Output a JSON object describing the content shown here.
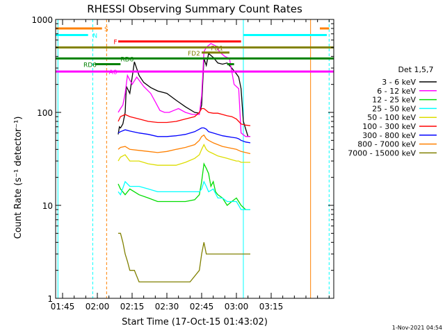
{
  "chart_data": {
    "type": "line",
    "title": "RHESSI Observing Summary Count Rates",
    "xlabel": "Start Time (17-Oct-15 01:43:02)",
    "ylabel": "Count Rate (s⁻¹ detector⁻¹)",
    "yscale": "log",
    "ylim": [
      1,
      1000
    ],
    "xlim_minutes": [
      102,
      222
    ],
    "x_ticks": [
      "01:45",
      "02:00",
      "02:15",
      "02:30",
      "02:45",
      "03:00",
      "03:15"
    ],
    "x_tick_minutes": [
      105,
      120,
      135,
      150,
      165,
      180,
      195
    ],
    "y_ticks": [
      "1",
      "10",
      "100",
      "1000"
    ],
    "y_tick_values": [
      1,
      10,
      100,
      1000
    ],
    "legend_title": "Det 1,5,7",
    "legend_placement": "right",
    "timestamp": "1-Nov-2021 04:54",
    "series": [
      {
        "name": "3 - 6 keV",
        "color": "#000000",
        "points": [
          [
            129,
            58
          ],
          [
            129.5,
            70
          ],
          [
            130,
            68
          ],
          [
            131,
            75
          ],
          [
            132,
            100
          ],
          [
            132.5,
            190
          ],
          [
            134,
            160
          ],
          [
            136,
            350
          ],
          [
            138,
            250
          ],
          [
            140,
            210
          ],
          [
            143,
            185
          ],
          [
            146,
            170
          ],
          [
            150,
            160
          ],
          [
            154,
            135
          ],
          [
            158,
            115
          ],
          [
            162,
            100
          ],
          [
            164,
            98
          ],
          [
            165,
            120
          ],
          [
            166,
            380
          ],
          [
            167,
            320
          ],
          [
            168,
            430
          ],
          [
            170,
            390
          ],
          [
            172,
            340
          ],
          [
            174,
            330
          ],
          [
            176,
            340
          ],
          [
            178,
            300
          ],
          [
            180,
            260
          ],
          [
            181,
            240
          ],
          [
            182,
            180
          ],
          [
            183,
            80
          ],
          [
            185,
            55
          ],
          [
            186,
            55
          ]
        ]
      },
      {
        "name": "6 - 12 keV",
        "color": "#ff00ff",
        "points": [
          [
            129,
            100
          ],
          [
            130,
            110
          ],
          [
            131,
            120
          ],
          [
            132,
            160
          ],
          [
            133,
            250
          ],
          [
            135,
            200
          ],
          [
            137,
            240
          ],
          [
            140,
            190
          ],
          [
            143,
            160
          ],
          [
            145,
            130
          ],
          [
            147,
            105
          ],
          [
            149,
            100
          ],
          [
            151,
            100
          ],
          [
            153,
            105
          ],
          [
            155,
            110
          ],
          [
            158,
            100
          ],
          [
            161,
            95
          ],
          [
            164,
            95
          ],
          [
            165,
            150
          ],
          [
            166,
            450
          ],
          [
            167,
            500
          ],
          [
            169,
            550
          ],
          [
            171,
            520
          ],
          [
            173,
            440
          ],
          [
            175,
            400
          ],
          [
            177,
            380
          ],
          [
            179,
            200
          ],
          [
            181,
            180
          ],
          [
            182,
            60
          ],
          [
            184,
            55
          ],
          [
            186,
            55
          ]
        ]
      },
      {
        "name": "12 - 25 keV",
        "color": "#00dd00",
        "points": [
          [
            129,
            17
          ],
          [
            130,
            15
          ],
          [
            132,
            13
          ],
          [
            134,
            15
          ],
          [
            138,
            13
          ],
          [
            142,
            12
          ],
          [
            146,
            11
          ],
          [
            150,
            11
          ],
          [
            154,
            11
          ],
          [
            158,
            11
          ],
          [
            162,
            11.5
          ],
          [
            164,
            13
          ],
          [
            165,
            18
          ],
          [
            166,
            28
          ],
          [
            167,
            25
          ],
          [
            168,
            22
          ],
          [
            169,
            16
          ],
          [
            170,
            18
          ],
          [
            171,
            14
          ],
          [
            172,
            13
          ],
          [
            174,
            12
          ],
          [
            176,
            10
          ],
          [
            178,
            11
          ],
          [
            180,
            12
          ],
          [
            181,
            11
          ],
          [
            182,
            10
          ],
          [
            184,
            9
          ],
          [
            186,
            9
          ]
        ]
      },
      {
        "name": "25 - 50 keV",
        "color": "#00ffff",
        "points": [
          [
            129,
            14
          ],
          [
            130,
            13
          ],
          [
            132,
            18
          ],
          [
            134,
            16
          ],
          [
            138,
            16
          ],
          [
            142,
            15
          ],
          [
            146,
            14
          ],
          [
            150,
            14
          ],
          [
            154,
            14
          ],
          [
            158,
            14
          ],
          [
            162,
            14
          ],
          [
            164,
            14
          ],
          [
            165,
            15
          ],
          [
            166,
            18
          ],
          [
            167,
            16
          ],
          [
            168,
            14
          ],
          [
            170,
            15
          ],
          [
            172,
            12
          ],
          [
            174,
            12
          ],
          [
            176,
            11
          ],
          [
            178,
            11
          ],
          [
            180,
            11
          ],
          [
            181,
            10
          ],
          [
            182,
            9
          ],
          [
            184,
            9
          ],
          [
            186,
            9
          ]
        ]
      },
      {
        "name": "50 - 100 keV",
        "color": "#dddd00",
        "points": [
          [
            129,
            30
          ],
          [
            130,
            33
          ],
          [
            132,
            35
          ],
          [
            134,
            30
          ],
          [
            138,
            30
          ],
          [
            142,
            28
          ],
          [
            146,
            27
          ],
          [
            150,
            27
          ],
          [
            154,
            27
          ],
          [
            158,
            29
          ],
          [
            162,
            32
          ],
          [
            164,
            35
          ],
          [
            165,
            40
          ],
          [
            166,
            45
          ],
          [
            167,
            40
          ],
          [
            168,
            38
          ],
          [
            170,
            36
          ],
          [
            172,
            34
          ],
          [
            174,
            33
          ],
          [
            176,
            32
          ],
          [
            178,
            31
          ],
          [
            180,
            30
          ],
          [
            181,
            30
          ],
          [
            182,
            29
          ],
          [
            184,
            29
          ],
          [
            186,
            29
          ]
        ]
      },
      {
        "name": "100 - 300 keV",
        "color": "#ff0000",
        "points": [
          [
            129,
            80
          ],
          [
            130,
            90
          ],
          [
            132,
            95
          ],
          [
            134,
            90
          ],
          [
            138,
            85
          ],
          [
            142,
            80
          ],
          [
            146,
            78
          ],
          [
            150,
            78
          ],
          [
            154,
            80
          ],
          [
            158,
            85
          ],
          [
            162,
            90
          ],
          [
            164,
            100
          ],
          [
            165,
            110
          ],
          [
            166,
            110
          ],
          [
            167,
            105
          ],
          [
            168,
            100
          ],
          [
            170,
            98
          ],
          [
            172,
            98
          ],
          [
            174,
            95
          ],
          [
            176,
            92
          ],
          [
            178,
            90
          ],
          [
            180,
            85
          ],
          [
            181,
            80
          ],
          [
            182,
            75
          ],
          [
            184,
            73
          ],
          [
            186,
            72
          ]
        ]
      },
      {
        "name": "300 - 800 keV",
        "color": "#0000ff",
        "points": [
          [
            129,
            60
          ],
          [
            130,
            62
          ],
          [
            132,
            65
          ],
          [
            134,
            63
          ],
          [
            138,
            60
          ],
          [
            142,
            58
          ],
          [
            146,
            55
          ],
          [
            150,
            55
          ],
          [
            154,
            56
          ],
          [
            158,
            58
          ],
          [
            162,
            62
          ],
          [
            164,
            66
          ],
          [
            165,
            68
          ],
          [
            166,
            68
          ],
          [
            167,
            66
          ],
          [
            168,
            62
          ],
          [
            170,
            60
          ],
          [
            172,
            58
          ],
          [
            174,
            56
          ],
          [
            176,
            55
          ],
          [
            178,
            54
          ],
          [
            180,
            53
          ],
          [
            181,
            52
          ],
          [
            182,
            50
          ],
          [
            184,
            48
          ],
          [
            186,
            47
          ]
        ]
      },
      {
        "name": "800 - 7000 keV",
        "color": "#ff8000",
        "points": [
          [
            129,
            40
          ],
          [
            130,
            42
          ],
          [
            132,
            43
          ],
          [
            134,
            40
          ],
          [
            138,
            39
          ],
          [
            142,
            38
          ],
          [
            146,
            37
          ],
          [
            150,
            38
          ],
          [
            154,
            40
          ],
          [
            158,
            42
          ],
          [
            162,
            45
          ],
          [
            164,
            50
          ],
          [
            165,
            55
          ],
          [
            166,
            57
          ],
          [
            167,
            52
          ],
          [
            168,
            50
          ],
          [
            170,
            47
          ],
          [
            172,
            45
          ],
          [
            174,
            43
          ],
          [
            176,
            42
          ],
          [
            178,
            41
          ],
          [
            180,
            40
          ],
          [
            181,
            39
          ],
          [
            182,
            38
          ],
          [
            184,
            37
          ],
          [
            186,
            36
          ]
        ]
      },
      {
        "name": "7000 - 15000 keV",
        "color": "#808000",
        "points": [
          [
            129,
            5
          ],
          [
            130,
            5
          ],
          [
            131,
            4
          ],
          [
            132,
            3
          ],
          [
            133,
            2.5
          ],
          [
            134,
            2
          ],
          [
            136,
            2
          ],
          [
            138,
            1.5
          ],
          [
            140,
            1.5
          ],
          [
            144,
            1.5
          ],
          [
            148,
            1.5
          ],
          [
            152,
            1.5
          ],
          [
            156,
            1.5
          ],
          [
            160,
            1.5
          ],
          [
            164,
            2
          ],
          [
            165,
            3
          ],
          [
            166,
            4
          ],
          [
            167,
            3
          ],
          [
            168,
            3
          ],
          [
            170,
            3
          ],
          [
            172,
            3
          ],
          [
            174,
            3
          ],
          [
            176,
            3
          ],
          [
            178,
            3
          ],
          [
            180,
            3
          ],
          [
            181,
            3
          ],
          [
            182,
            3
          ],
          [
            184,
            3
          ],
          [
            186,
            3
          ]
        ]
      }
    ],
    "state_bars": [
      {
        "label": "S",
        "color": "#ff8000",
        "y": 800,
        "segments": [
          [
            102,
            122
          ],
          [
            216,
            220
          ]
        ],
        "label_at": 123
      },
      {
        "label": "N",
        "color": "#00ffff",
        "y": 680,
        "segments": [
          [
            102,
            116
          ],
          [
            183,
            219
          ]
        ],
        "label_at": 118
      },
      {
        "label": "F",
        "color": "#ff0000",
        "y": 580,
        "segments": [
          [
            129,
            182
          ]
        ],
        "label_at": 127
      },
      {
        "label": "FD1",
        "color": "#808000",
        "y": 500,
        "segments": [
          [
            102,
            222
          ]
        ],
        "label_at": 169
      },
      {
        "label": "FD2",
        "color": "#808000",
        "y": 440,
        "segments": [
          [
            165,
            177
          ]
        ],
        "label_at": 159
      },
      {
        "label": "RD6",
        "color": "#008000",
        "y": 380,
        "segments": [
          [
            102,
            222
          ]
        ],
        "label_at": 130
      },
      {
        "label": "RD6",
        "color": "#008000",
        "y": 330,
        "segments": [
          [
            119,
            130
          ],
          [
            176,
            179
          ]
        ],
        "label_at": 114
      },
      {
        "label": "A0",
        "color": "#ff00ff",
        "y": 275,
        "segments": [
          [
            102,
            222
          ]
        ],
        "label_at": 125
      }
    ],
    "vertical_lines": [
      {
        "minute": 103,
        "color": "#00ffff",
        "style": "solid"
      },
      {
        "minute": 118,
        "color": "#00ffff",
        "style": "dashed"
      },
      {
        "minute": 124,
        "color": "#ff8000",
        "style": "dashed"
      },
      {
        "minute": 183,
        "color": "#00ffff",
        "style": "solid"
      },
      {
        "minute": 212,
        "color": "#ff8000",
        "style": "solid"
      },
      {
        "minute": 220,
        "color": "#00ffff",
        "style": "dashed"
      }
    ]
  }
}
